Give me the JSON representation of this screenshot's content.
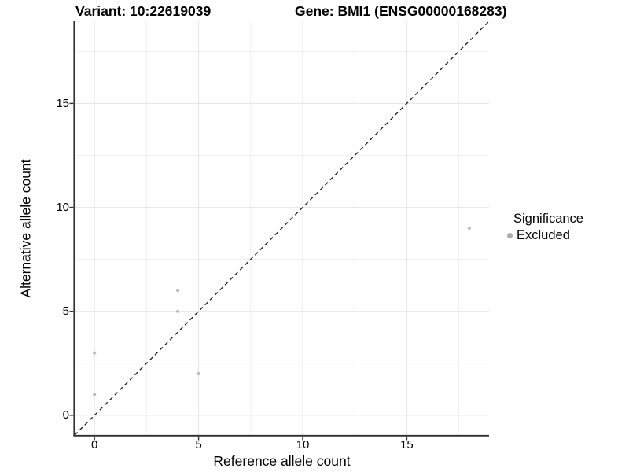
{
  "chart_data": {
    "type": "scatter",
    "title_left": "Variant: 10:22619039",
    "title_right": "Gene: BMI1 (ENSG00000168283)",
    "xlabel": "Reference allele count",
    "ylabel": "Alternative allele count",
    "xlim": [
      -0.95,
      18.95
    ],
    "ylim": [
      -0.95,
      18.95
    ],
    "xticks": [
      0,
      5,
      10,
      15
    ],
    "yticks": [
      0,
      5,
      10,
      15
    ],
    "xminor": [
      2.5,
      7.5,
      12.5,
      17.5
    ],
    "yminor": [
      2.5,
      7.5,
      12.5,
      17.5
    ],
    "grid": "major+minor",
    "identity_line": {
      "equation": "y = x",
      "style": "dashed",
      "color": "#1A1A1A"
    },
    "legend": {
      "title": "Significance",
      "position": "right",
      "items": [
        {
          "label": "Excluded",
          "color": "#ADADAD"
        }
      ]
    },
    "series": [
      {
        "name": "Excluded",
        "color": "#BDBDBD",
        "points": [
          {
            "x": 0,
            "y": 1
          },
          {
            "x": 0,
            "y": 3
          },
          {
            "x": 4,
            "y": 5
          },
          {
            "x": 4,
            "y": 6
          },
          {
            "x": 5,
            "y": 2
          },
          {
            "x": 18,
            "y": 9
          }
        ]
      }
    ]
  },
  "colors": {
    "background": "#FFFFFF",
    "grid_major": "#E4E4E4",
    "grid_minor": "#F1F1F1",
    "axis_line": "#2F2F2F",
    "text": "#000000",
    "point": "#BDBDBD"
  }
}
